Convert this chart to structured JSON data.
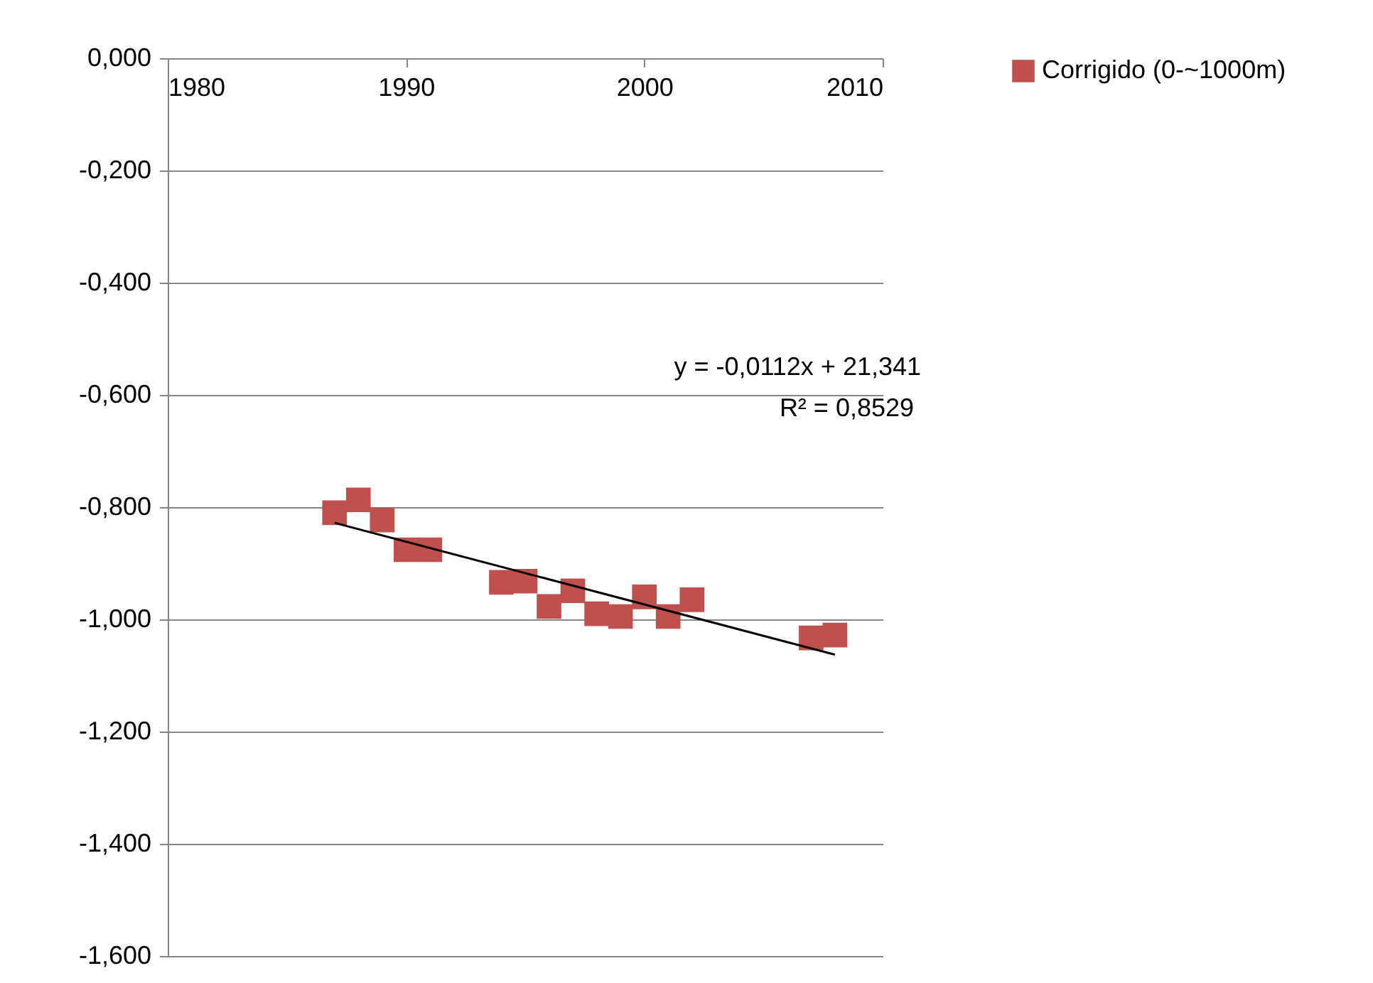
{
  "chart_data": {
    "type": "scatter",
    "x": [
      1987,
      1988,
      1989,
      1990,
      1991,
      1994,
      1995,
      1996,
      1997,
      1998,
      1999,
      2000,
      2001,
      2002,
      2007,
      2008
    ],
    "series": [
      {
        "name": "Corrigido (0-~1000m)",
        "color": "#c0504d",
        "values": [
          -0.81,
          -0.787,
          -0.823,
          -0.876,
          -0.876,
          -0.934,
          -0.932,
          -0.977,
          -0.949,
          -0.99,
          -0.995,
          -0.96,
          -0.995,
          -0.965,
          -1.033,
          -1.028
        ]
      },
      {
        "type": "line",
        "marker": "none",
        "color": "#000000",
        "x": [
          1987,
          2008
        ],
        "values": [
          -0.828,
          -1.063
        ]
      }
    ],
    "annotations": [
      "y = -0,0112x + 21,341",
      "R² = 0,8529"
    ],
    "xlim": [
      1980,
      2010
    ],
    "xticks": [
      1980,
      1990,
      2000,
      2010
    ],
    "ylim": [
      -1.6,
      0
    ],
    "yticks": [
      {
        "value": 0,
        "label": "0,000"
      },
      {
        "value": -0.2,
        "label": "-0,200"
      },
      {
        "value": -0.4,
        "label": "-0,400"
      },
      {
        "value": -0.6,
        "label": "-0,600"
      },
      {
        "value": -0.8,
        "label": "-0,800"
      },
      {
        "value": -1.0,
        "label": "-1,000"
      },
      {
        "value": -1.2,
        "label": "-1,200"
      },
      {
        "value": -1.4,
        "label": "-1,400"
      },
      {
        "value": -1.6,
        "label": "-1,600"
      }
    ],
    "grid": "y",
    "legend": "right",
    "marker": "square"
  }
}
